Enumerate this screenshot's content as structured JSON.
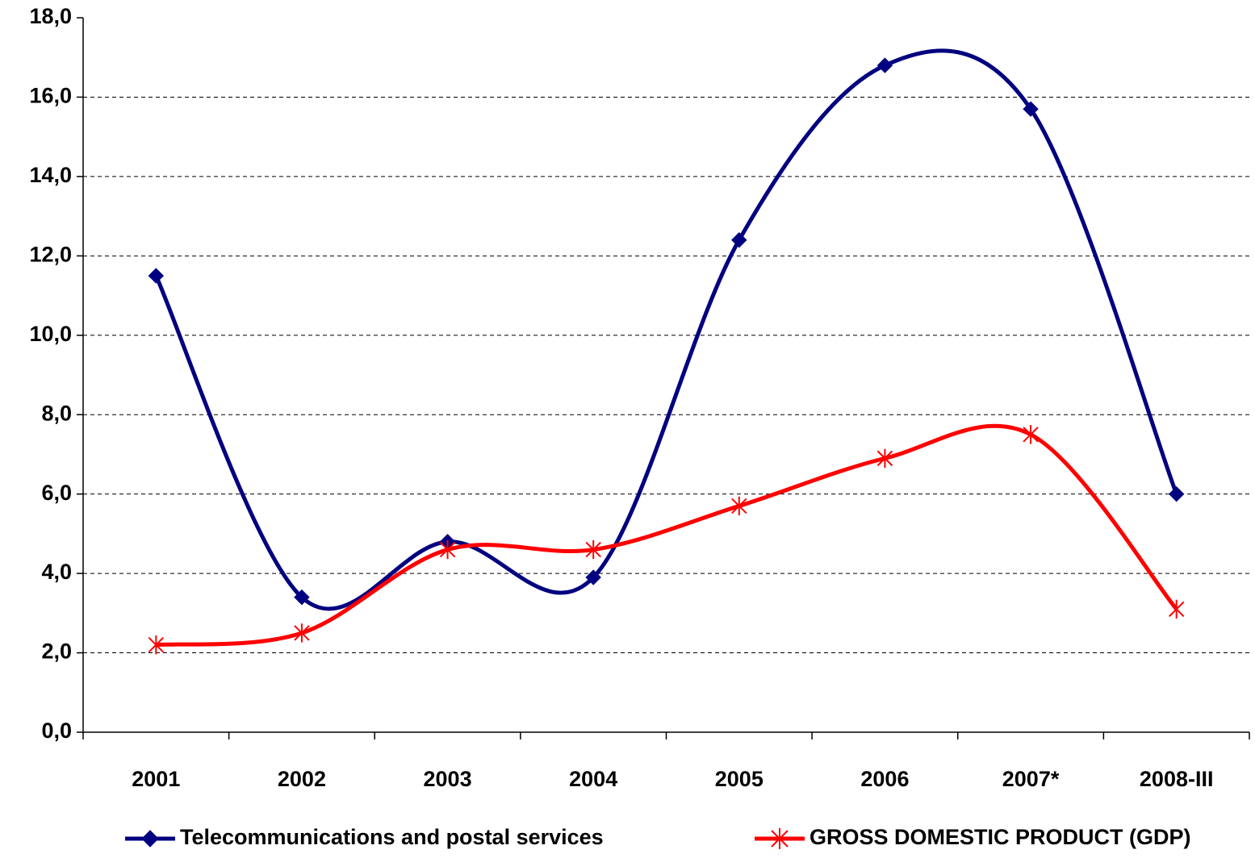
{
  "chart_data": {
    "type": "line",
    "categories": [
      "2001",
      "2002",
      "2003",
      "2004",
      "2005",
      "2006",
      "2007*",
      "2008-III"
    ],
    "series": [
      {
        "name": "Telecommunications and postal services",
        "color": "#000080",
        "marker": "diamond",
        "values": [
          11.5,
          3.4,
          4.8,
          3.9,
          12.4,
          16.8,
          15.7,
          6.0
        ]
      },
      {
        "name": "GROSS DOMESTIC PRODUCT (GDP)",
        "color": "#ff0000",
        "marker": "asterisk",
        "values": [
          2.2,
          2.5,
          4.6,
          4.6,
          5.7,
          6.9,
          7.5,
          3.1
        ]
      }
    ],
    "ylim": [
      0,
      18
    ],
    "yticks": [
      {
        "value": 0,
        "label": "0,0"
      },
      {
        "value": 2,
        "label": "2,0"
      },
      {
        "value": 4,
        "label": "4,0"
      },
      {
        "value": 6,
        "label": "6,0"
      },
      {
        "value": 8,
        "label": "8,0"
      },
      {
        "value": 10,
        "label": "10,0"
      },
      {
        "value": 12,
        "label": "12,0"
      },
      {
        "value": 14,
        "label": "14,0"
      },
      {
        "value": 16,
        "label": "16,0"
      },
      {
        "value": 18,
        "label": "18,0"
      }
    ],
    "grid": true,
    "smooth": true,
    "legend": "bottom"
  }
}
